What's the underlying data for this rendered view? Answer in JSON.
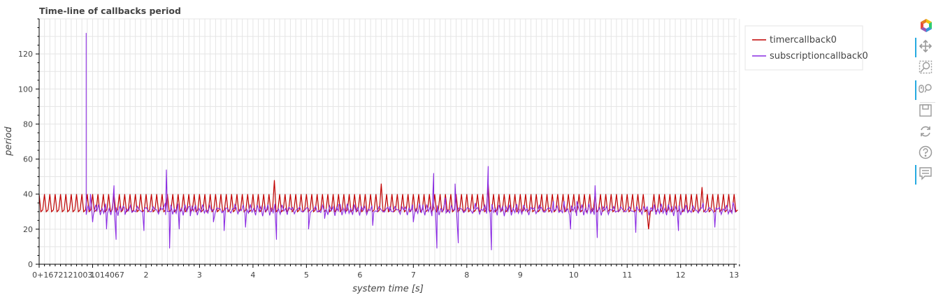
{
  "chart_data": {
    "type": "line",
    "title": "Time-line of callbacks period",
    "xlabel": "system time [s]",
    "ylabel": "period",
    "xlim": [
      0,
      13.05
    ],
    "ylim": [
      0,
      140
    ],
    "x_offset_label": "0+1672121003.014067",
    "x_ticks": [
      1,
      2,
      3,
      4,
      5,
      6,
      7,
      8,
      9,
      10,
      11,
      12,
      13
    ],
    "y_ticks": [
      0,
      20,
      40,
      60,
      80,
      100,
      120
    ],
    "grid": true,
    "legend_position": "top-right",
    "series": [
      {
        "name": "timercallback0",
        "color": "#c00000",
        "period_s": 0.1,
        "start": 0.0,
        "pattern": [
          40,
          30,
          31
        ],
        "spikes": [
          [
            4.4,
            48
          ],
          [
            6.4,
            46
          ],
          [
            8.4,
            46
          ],
          [
            11.4,
            20
          ],
          [
            12.4,
            44
          ]
        ]
      },
      {
        "name": "subscriptioncallback0",
        "color": "#8a2be2",
        "start": 0.88,
        "dt": 0.033,
        "base": 31,
        "points": [
          [
            0.88,
            132
          ],
          [
            0.96,
            40
          ],
          [
            1.0,
            24
          ],
          [
            1.06,
            34
          ],
          [
            1.26,
            20
          ],
          [
            1.4,
            45
          ],
          [
            1.44,
            14
          ],
          [
            1.6,
            32
          ],
          [
            1.96,
            19
          ],
          [
            2.36,
            35
          ],
          [
            2.38,
            54
          ],
          [
            2.4,
            30
          ],
          [
            2.44,
            9
          ],
          [
            2.62,
            20
          ],
          [
            2.82,
            33
          ],
          [
            3.26,
            24
          ],
          [
            3.46,
            19
          ],
          [
            3.66,
            34
          ],
          [
            3.86,
            21
          ],
          [
            4.44,
            14
          ],
          [
            4.66,
            32
          ],
          [
            5.04,
            20
          ],
          [
            5.34,
            26
          ],
          [
            5.6,
            34
          ],
          [
            6.24,
            22
          ],
          [
            6.56,
            33
          ],
          [
            7.0,
            24
          ],
          [
            7.18,
            34
          ],
          [
            7.38,
            52
          ],
          [
            7.44,
            9
          ],
          [
            7.6,
            38
          ],
          [
            7.78,
            46
          ],
          [
            7.84,
            12
          ],
          [
            8.16,
            35
          ],
          [
            8.4,
            56
          ],
          [
            8.46,
            8
          ],
          [
            8.58,
            31
          ],
          [
            9.16,
            28
          ],
          [
            9.36,
            34
          ],
          [
            9.62,
            36
          ],
          [
            9.82,
            36
          ],
          [
            9.94,
            20
          ],
          [
            10.06,
            36
          ],
          [
            10.4,
            45
          ],
          [
            10.44,
            15
          ],
          [
            10.74,
            32
          ],
          [
            11.16,
            18
          ],
          [
            11.46,
            32
          ],
          [
            11.96,
            19
          ],
          [
            12.42,
            35
          ],
          [
            12.64,
            21
          ],
          [
            12.98,
            35
          ]
        ]
      }
    ]
  },
  "toolbar": {
    "tools": [
      "bokeh-logo-icon",
      "pan-icon",
      "box-zoom-icon",
      "wheel-zoom-icon",
      "save-icon",
      "reset-icon",
      "help-icon",
      "hover-icon"
    ]
  }
}
